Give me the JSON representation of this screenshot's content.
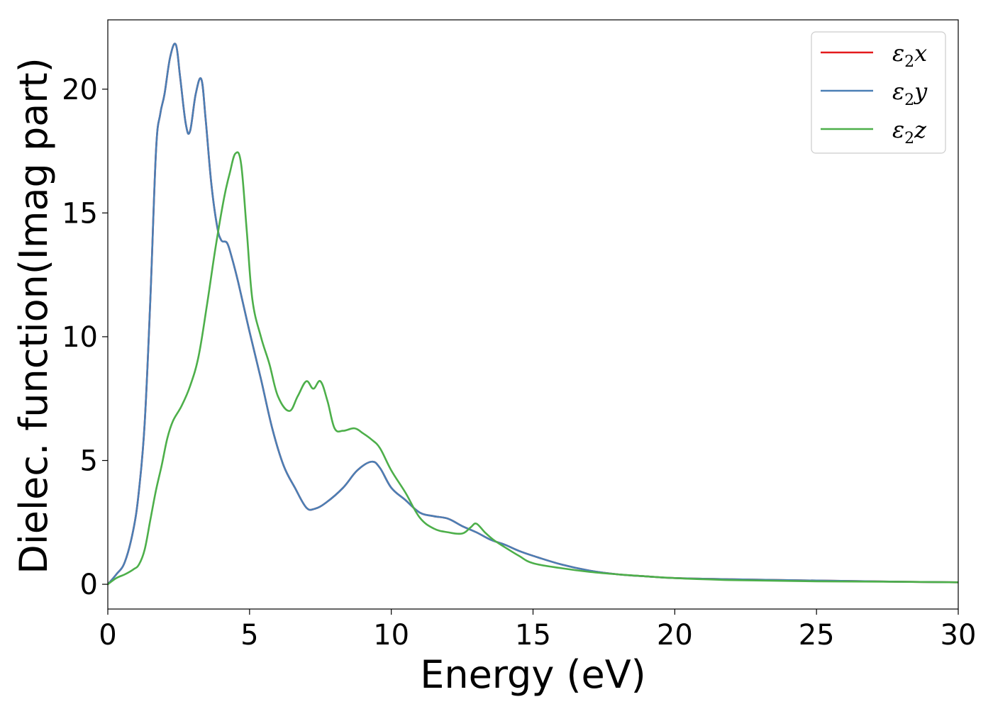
{
  "chart_data": {
    "type": "line",
    "title": "",
    "xlabel": "Energy (eV)",
    "ylabel": "Dielec. function(Imag part)",
    "xlim": [
      0,
      30
    ],
    "ylim": [
      -1.0,
      22.8
    ],
    "xticks": [
      0,
      5,
      10,
      15,
      20,
      25,
      30
    ],
    "xtick_labels": [
      "0",
      "5",
      "10",
      "15",
      "20",
      "25",
      "30"
    ],
    "yticks": [
      0,
      5,
      10,
      15,
      20
    ],
    "ytick_labels": [
      "0",
      "5",
      "10",
      "15",
      "20"
    ],
    "grid": false,
    "legend_position": "top-right",
    "series": [
      {
        "name": "ε2x",
        "legend_base": "ε",
        "legend_sub": "2",
        "legend_suffix": "x",
        "color": "#e41a1c",
        "x": [
          0,
          0.3,
          0.6,
          0.9,
          1.1,
          1.3,
          1.5,
          1.7,
          1.85,
          2.0,
          2.2,
          2.4,
          2.55,
          2.75,
          2.9,
          3.1,
          3.3,
          3.45,
          3.65,
          3.85,
          4.0,
          4.2,
          4.35,
          4.6,
          5.0,
          5.4,
          5.8,
          6.2,
          6.6,
          7.0,
          7.3,
          7.7,
          8.3,
          8.8,
          9.3,
          9.6,
          10.0,
          10.5,
          11.0,
          11.5,
          12.0,
          12.5,
          13.0,
          13.5,
          14.0,
          14.5,
          15.0,
          16.0,
          17.0,
          18.0,
          19.0,
          20.0,
          22.0,
          25.0,
          28.0,
          30.0
        ],
        "y": [
          0,
          0.4,
          0.9,
          2.2,
          3.8,
          6.5,
          11.5,
          17.5,
          19.0,
          19.8,
          21.3,
          21.8,
          20.5,
          18.6,
          18.3,
          19.8,
          20.4,
          18.8,
          16.2,
          14.5,
          13.9,
          13.8,
          13.3,
          12.2,
          10.2,
          8.3,
          6.3,
          4.8,
          3.9,
          3.1,
          3.05,
          3.3,
          3.9,
          4.6,
          4.95,
          4.7,
          3.9,
          3.4,
          2.9,
          2.75,
          2.65,
          2.35,
          2.1,
          1.8,
          1.6,
          1.35,
          1.15,
          0.8,
          0.55,
          0.4,
          0.32,
          0.25,
          0.2,
          0.15,
          0.1,
          0.08
        ]
      },
      {
        "name": "ε2y",
        "legend_base": "ε",
        "legend_sub": "2",
        "legend_suffix": "y",
        "color": "#4a7fb5",
        "x": [
          0,
          0.3,
          0.6,
          0.9,
          1.1,
          1.3,
          1.5,
          1.7,
          1.85,
          2.0,
          2.2,
          2.4,
          2.55,
          2.75,
          2.9,
          3.1,
          3.3,
          3.45,
          3.65,
          3.85,
          4.0,
          4.2,
          4.35,
          4.6,
          5.0,
          5.4,
          5.8,
          6.2,
          6.6,
          7.0,
          7.3,
          7.7,
          8.3,
          8.8,
          9.3,
          9.6,
          10.0,
          10.5,
          11.0,
          11.5,
          12.0,
          12.5,
          13.0,
          13.5,
          14.0,
          14.5,
          15.0,
          16.0,
          17.0,
          18.0,
          19.0,
          20.0,
          22.0,
          25.0,
          28.0,
          30.0
        ],
        "y": [
          0,
          0.4,
          0.9,
          2.2,
          3.8,
          6.5,
          11.5,
          17.5,
          19.0,
          19.8,
          21.3,
          21.8,
          20.5,
          18.6,
          18.3,
          19.8,
          20.4,
          18.8,
          16.2,
          14.5,
          13.9,
          13.8,
          13.3,
          12.2,
          10.2,
          8.3,
          6.3,
          4.8,
          3.9,
          3.1,
          3.05,
          3.3,
          3.9,
          4.6,
          4.95,
          4.7,
          3.9,
          3.4,
          2.9,
          2.75,
          2.65,
          2.35,
          2.1,
          1.8,
          1.6,
          1.35,
          1.15,
          0.8,
          0.55,
          0.4,
          0.32,
          0.25,
          0.2,
          0.15,
          0.1,
          0.08
        ]
      },
      {
        "name": "ε2z",
        "legend_base": "ε",
        "legend_sub": "2",
        "legend_suffix": "z",
        "color": "#4daf4a",
        "x": [
          0,
          0.3,
          0.6,
          0.9,
          1.1,
          1.3,
          1.5,
          1.7,
          1.9,
          2.1,
          2.3,
          2.6,
          2.9,
          3.2,
          3.5,
          3.8,
          4.1,
          4.3,
          4.5,
          4.7,
          4.9,
          5.1,
          5.4,
          5.7,
          6.0,
          6.4,
          6.7,
          7.0,
          7.25,
          7.5,
          7.75,
          8.0,
          8.3,
          8.7,
          9.0,
          9.3,
          9.6,
          10.0,
          10.5,
          11.0,
          11.5,
          12.0,
          12.5,
          12.8,
          13.0,
          13.3,
          13.6,
          14.0,
          14.5,
          15.0,
          16.0,
          17.0,
          18.0,
          20.0,
          22.0,
          25.0,
          28.0,
          30.0
        ],
        "y": [
          0,
          0.25,
          0.4,
          0.6,
          0.8,
          1.4,
          2.6,
          3.8,
          4.8,
          5.9,
          6.6,
          7.2,
          8.0,
          9.2,
          11.3,
          13.6,
          15.6,
          16.6,
          17.4,
          17.0,
          14.3,
          11.5,
          10.0,
          8.9,
          7.6,
          7.0,
          7.6,
          8.2,
          7.9,
          8.2,
          7.4,
          6.3,
          6.2,
          6.3,
          6.1,
          5.85,
          5.5,
          4.6,
          3.7,
          2.7,
          2.25,
          2.1,
          2.05,
          2.3,
          2.45,
          2.1,
          1.8,
          1.5,
          1.15,
          0.85,
          0.65,
          0.5,
          0.4,
          0.25,
          0.17,
          0.12,
          0.1,
          0.08
        ]
      }
    ]
  }
}
